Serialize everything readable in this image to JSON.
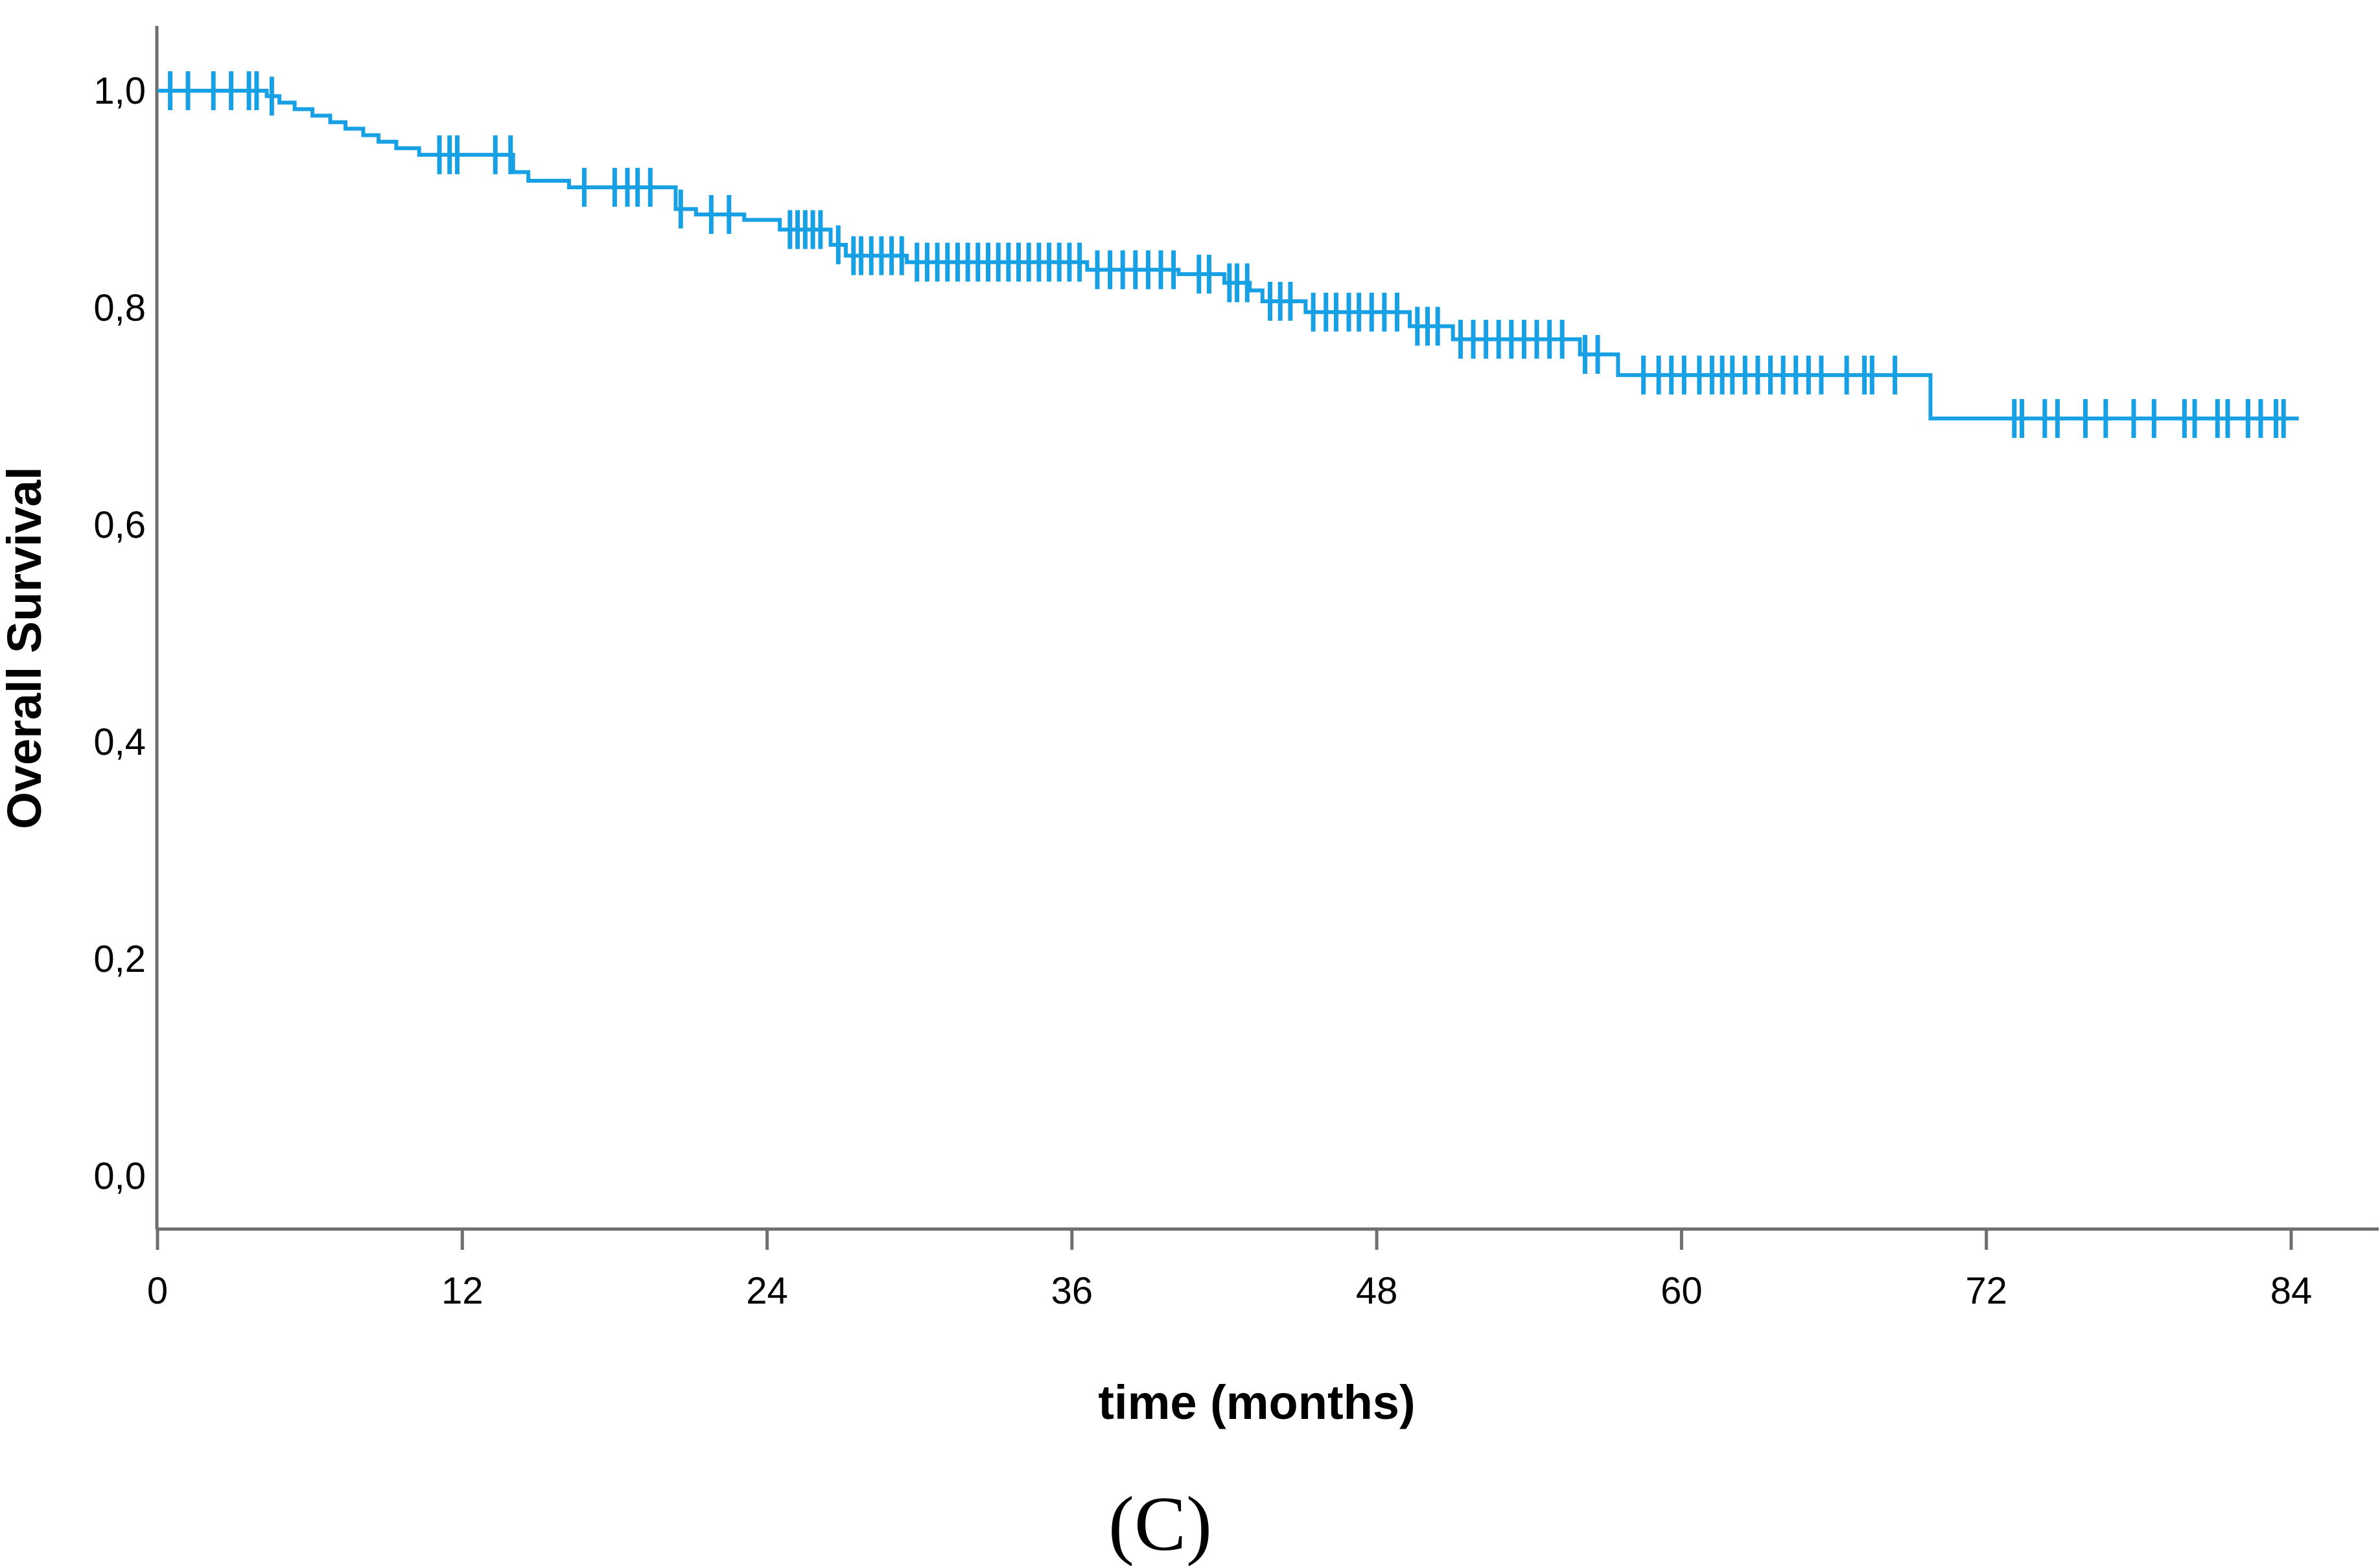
{
  "figure": {
    "background": "#ffffff",
    "caption": "(C)"
  },
  "axes": {
    "color": "#6e6e6e",
    "label_color": "#000000"
  },
  "chart_data": {
    "type": "line",
    "subtype": "kaplan-meier-step-curve",
    "title": "",
    "xlabel": "time (months)",
    "ylabel": "Overall Survival",
    "grid": false,
    "legend": null,
    "xlim": [
      0,
      87.5
    ],
    "ylim": [
      0,
      1.04
    ],
    "x_ticks": [
      0,
      12,
      24,
      36,
      48,
      60,
      72,
      84
    ],
    "x_tick_labels": [
      "0",
      "12",
      "24",
      "36",
      "48",
      "60",
      "72",
      "84"
    ],
    "y_ticks": [
      1.0,
      0.8,
      0.6,
      0.4,
      0.2,
      0.0
    ],
    "y_tick_labels": [
      "1,0",
      "0,8",
      "0,6",
      "0,4",
      "0,2",
      "0,0"
    ],
    "series": [
      {
        "name": "Overall Survival",
        "color": "#18A0E4",
        "line_width": 6,
        "end_time": 84.3,
        "steps": [
          [
            0,
            1.0
          ],
          [
            4.3,
            0.995
          ],
          [
            4.8,
            0.989
          ],
          [
            5.4,
            0.983
          ],
          [
            6.1,
            0.977
          ],
          [
            6.8,
            0.971
          ],
          [
            7.4,
            0.965
          ],
          [
            8.1,
            0.959
          ],
          [
            8.7,
            0.953
          ],
          [
            9.4,
            0.947
          ],
          [
            10.3,
            0.941
          ],
          [
            14.0,
            0.925
          ],
          [
            14.6,
            0.917
          ],
          [
            16.2,
            0.911
          ],
          [
            20.4,
            0.891
          ],
          [
            21.2,
            0.886
          ],
          [
            23.1,
            0.881
          ],
          [
            24.5,
            0.872
          ],
          [
            26.5,
            0.858
          ],
          [
            27.1,
            0.848
          ],
          [
            29.5,
            0.842
          ],
          [
            36.6,
            0.835
          ],
          [
            40.2,
            0.831
          ],
          [
            42.0,
            0.823
          ],
          [
            43.0,
            0.816
          ],
          [
            43.5,
            0.806
          ],
          [
            45.2,
            0.796
          ],
          [
            49.3,
            0.783
          ],
          [
            51.0,
            0.771
          ],
          [
            56.0,
            0.757
          ],
          [
            57.5,
            0.738
          ],
          [
            69.8,
            0.698
          ]
        ],
        "censors": [
          [
            0.5,
            1.0
          ],
          [
            1.2,
            1.0
          ],
          [
            2.2,
            1.0
          ],
          [
            2.9,
            1.0
          ],
          [
            3.6,
            1.0
          ],
          [
            3.9,
            1.0
          ],
          [
            4.5,
            0.995
          ],
          [
            11.1,
            0.941
          ],
          [
            11.5,
            0.941
          ],
          [
            11.8,
            0.941
          ],
          [
            13.3,
            0.941
          ],
          [
            13.9,
            0.941
          ],
          [
            16.8,
            0.911
          ],
          [
            18.0,
            0.911
          ],
          [
            18.5,
            0.911
          ],
          [
            18.9,
            0.911
          ],
          [
            19.4,
            0.911
          ],
          [
            20.6,
            0.891
          ],
          [
            21.8,
            0.886
          ],
          [
            22.5,
            0.886
          ],
          [
            24.9,
            0.872
          ],
          [
            25.2,
            0.872
          ],
          [
            25.5,
            0.872
          ],
          [
            25.8,
            0.872
          ],
          [
            26.1,
            0.872
          ],
          [
            26.8,
            0.858
          ],
          [
            27.4,
            0.848
          ],
          [
            27.7,
            0.848
          ],
          [
            28.1,
            0.848
          ],
          [
            28.5,
            0.848
          ],
          [
            28.9,
            0.848
          ],
          [
            29.3,
            0.848
          ],
          [
            29.9,
            0.842
          ],
          [
            30.3,
            0.842
          ],
          [
            30.7,
            0.842
          ],
          [
            31.1,
            0.842
          ],
          [
            31.5,
            0.842
          ],
          [
            31.9,
            0.842
          ],
          [
            32.3,
            0.842
          ],
          [
            32.7,
            0.842
          ],
          [
            33.1,
            0.842
          ],
          [
            33.5,
            0.842
          ],
          [
            33.9,
            0.842
          ],
          [
            34.3,
            0.842
          ],
          [
            34.7,
            0.842
          ],
          [
            35.1,
            0.842
          ],
          [
            35.5,
            0.842
          ],
          [
            35.9,
            0.842
          ],
          [
            36.3,
            0.842
          ],
          [
            37.0,
            0.835
          ],
          [
            37.5,
            0.835
          ],
          [
            38.0,
            0.835
          ],
          [
            38.5,
            0.835
          ],
          [
            39.0,
            0.835
          ],
          [
            39.5,
            0.835
          ],
          [
            40.0,
            0.835
          ],
          [
            41.0,
            0.831
          ],
          [
            41.4,
            0.831
          ],
          [
            42.2,
            0.823
          ],
          [
            42.5,
            0.823
          ],
          [
            42.9,
            0.823
          ],
          [
            43.8,
            0.806
          ],
          [
            44.2,
            0.806
          ],
          [
            44.6,
            0.806
          ],
          [
            45.5,
            0.796
          ],
          [
            46.0,
            0.796
          ],
          [
            46.4,
            0.796
          ],
          [
            46.9,
            0.796
          ],
          [
            47.3,
            0.796
          ],
          [
            47.8,
            0.796
          ],
          [
            48.3,
            0.796
          ],
          [
            48.8,
            0.796
          ],
          [
            49.6,
            0.783
          ],
          [
            50.0,
            0.783
          ],
          [
            50.4,
            0.783
          ],
          [
            51.3,
            0.771
          ],
          [
            51.8,
            0.771
          ],
          [
            52.3,
            0.771
          ],
          [
            52.8,
            0.771
          ],
          [
            53.3,
            0.771
          ],
          [
            53.8,
            0.771
          ],
          [
            54.3,
            0.771
          ],
          [
            54.8,
            0.771
          ],
          [
            55.3,
            0.771
          ],
          [
            56.2,
            0.757
          ],
          [
            56.7,
            0.757
          ],
          [
            58.5,
            0.738
          ],
          [
            59.1,
            0.738
          ],
          [
            59.6,
            0.738
          ],
          [
            60.1,
            0.738
          ],
          [
            60.7,
            0.738
          ],
          [
            61.2,
            0.738
          ],
          [
            61.6,
            0.738
          ],
          [
            62.0,
            0.738
          ],
          [
            62.5,
            0.738
          ],
          [
            63.0,
            0.738
          ],
          [
            63.5,
            0.738
          ],
          [
            64.0,
            0.738
          ],
          [
            64.5,
            0.738
          ],
          [
            65.0,
            0.738
          ],
          [
            65.5,
            0.738
          ],
          [
            66.5,
            0.738
          ],
          [
            67.2,
            0.738
          ],
          [
            67.5,
            0.738
          ],
          [
            68.4,
            0.738
          ],
          [
            73.1,
            0.698
          ],
          [
            73.4,
            0.698
          ],
          [
            74.3,
            0.698
          ],
          [
            74.8,
            0.698
          ],
          [
            75.9,
            0.698
          ],
          [
            76.7,
            0.698
          ],
          [
            77.8,
            0.698
          ],
          [
            78.6,
            0.698
          ],
          [
            79.8,
            0.698
          ],
          [
            80.2,
            0.698
          ],
          [
            81.1,
            0.698
          ],
          [
            81.5,
            0.698
          ],
          [
            82.3,
            0.698
          ],
          [
            82.8,
            0.698
          ],
          [
            83.4,
            0.698
          ],
          [
            83.7,
            0.698
          ]
        ]
      }
    ]
  }
}
